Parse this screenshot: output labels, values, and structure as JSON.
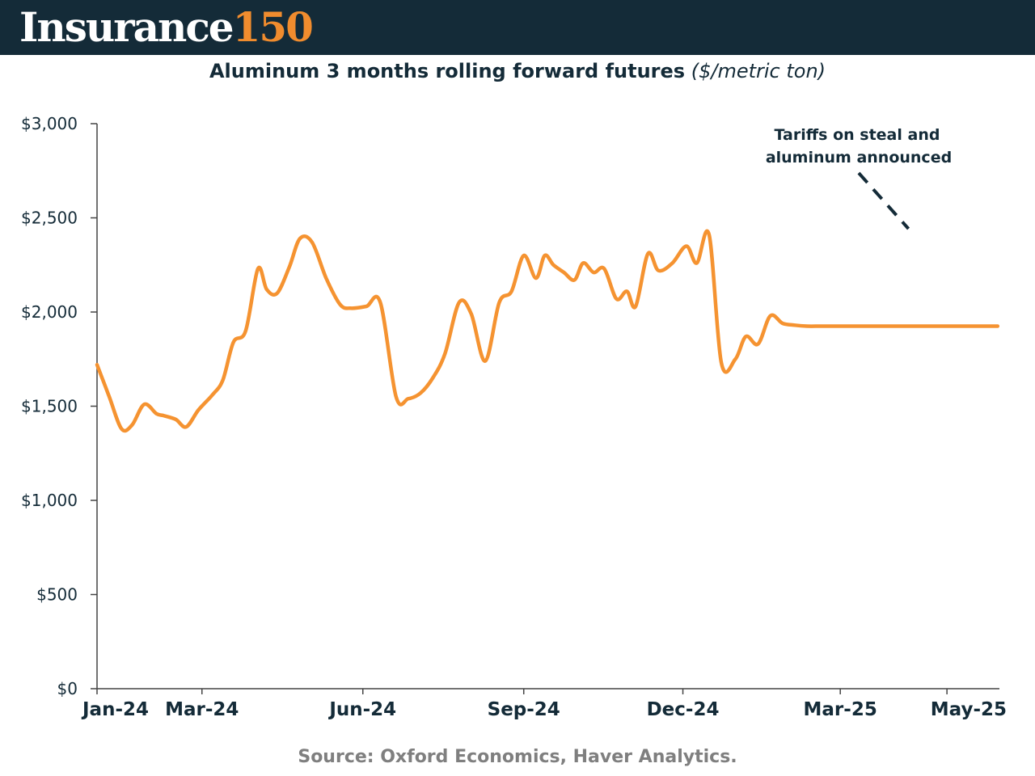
{
  "header": {
    "brand_word": "Insurance",
    "brand_number": "150",
    "brand_color": "#f08c2e",
    "background_color": "#142b38"
  },
  "chart_data": {
    "type": "line",
    "title": "Aluminum 3 months rolling forward futures",
    "unit_label": "($/metric ton)",
    "xlabel": "",
    "ylabel": "",
    "ylim": [
      0,
      3000
    ],
    "yticks": [
      0,
      500,
      1000,
      1500,
      2000,
      2500,
      3000
    ],
    "ytick_labels": [
      "$0",
      "$500",
      "$1,000",
      "$1,500",
      "$2,000",
      "$2,500",
      "$3,000"
    ],
    "x_start": "2024-01-01",
    "x_end": "2025-05-31",
    "xtick_dates": [
      "2024-01-01",
      "2024-03-01",
      "2024-06-01",
      "2024-09-01",
      "2024-12-01",
      "2025-03-01",
      "2025-05-01"
    ],
    "xtick_labels": [
      "Jan-24",
      "Mar-24",
      "Jun-24",
      "Sep-24",
      "Dec-24",
      "Mar-25",
      "May-25"
    ],
    "grid": false,
    "line_color": "#f59331",
    "series": [
      {
        "x": [
          "2024-01-01",
          "2024-01-08",
          "2024-01-15",
          "2024-01-21",
          "2024-01-28",
          "2024-02-04",
          "2024-02-08",
          "2024-02-15",
          "2024-02-21",
          "2024-02-28",
          "2024-03-07",
          "2024-03-13",
          "2024-03-19",
          "2024-03-26",
          "2024-04-02",
          "2024-04-07",
          "2024-04-13",
          "2024-04-20",
          "2024-04-26",
          "2024-05-03",
          "2024-05-11",
          "2024-05-19",
          "2024-05-25",
          "2024-06-03",
          "2024-06-11",
          "2024-06-20",
          "2024-06-27",
          "2024-07-04",
          "2024-07-11",
          "2024-07-18",
          "2024-07-26",
          "2024-08-02",
          "2024-08-10",
          "2024-08-18",
          "2024-08-25",
          "2024-09-01",
          "2024-09-08",
          "2024-09-13",
          "2024-09-18",
          "2024-09-24",
          "2024-09-30",
          "2024-10-05",
          "2024-10-11",
          "2024-10-17",
          "2024-10-24",
          "2024-10-30",
          "2024-11-04",
          "2024-11-11",
          "2024-11-17",
          "2024-11-25",
          "2024-12-03",
          "2024-12-09",
          "2024-12-16",
          "2024-12-23",
          "2024-12-31",
          "2025-01-06",
          "2025-01-13",
          "2025-01-20",
          "2025-01-27",
          "2025-02-03",
          "2025-02-10",
          "2025-02-17",
          "2025-02-22",
          "2025-03-01",
          "2025-03-07",
          "2025-03-13",
          "2025-03-18",
          "2025-03-25",
          "2025-03-30",
          "2025-04-05",
          "2025-04-10",
          "2025-04-17",
          "2025-04-25",
          "2025-05-02",
          "2025-05-08",
          "2025-05-15",
          "2025-05-22",
          "2025-05-30"
        ],
        "y": [
          1720,
          1550,
          1380,
          1400,
          1510,
          1460,
          1450,
          1430,
          1390,
          1480,
          1560,
          1640,
          1840,
          1900,
          2230,
          2120,
          2100,
          2240,
          2390,
          2370,
          2180,
          2040,
          2020,
          2030,
          2050,
          1550,
          1540,
          1570,
          1650,
          1780,
          2050,
          1990,
          1740,
          2050,
          2110,
          2300,
          2180,
          2300,
          2250,
          2210,
          2170,
          2260,
          2210,
          2230,
          2070,
          2110,
          2030,
          2310,
          2220,
          2260,
          2350,
          2260,
          2410,
          1730,
          1750,
          1870,
          1830,
          1980,
          1940,
          1930,
          1925,
          1925,
          1925,
          1925,
          1925,
          1925,
          1925,
          1925,
          1925,
          1925,
          1925,
          1925,
          1925,
          1925,
          1925,
          1925,
          1925,
          1925
        ]
      }
    ],
    "annotation": {
      "text_line1": "Tariffs on steal and",
      "text_line2": "aluminum announced",
      "target_date": "2025-04-09"
    }
  },
  "footer": {
    "source": "Source: Oxford Economics, Haver Analytics."
  }
}
